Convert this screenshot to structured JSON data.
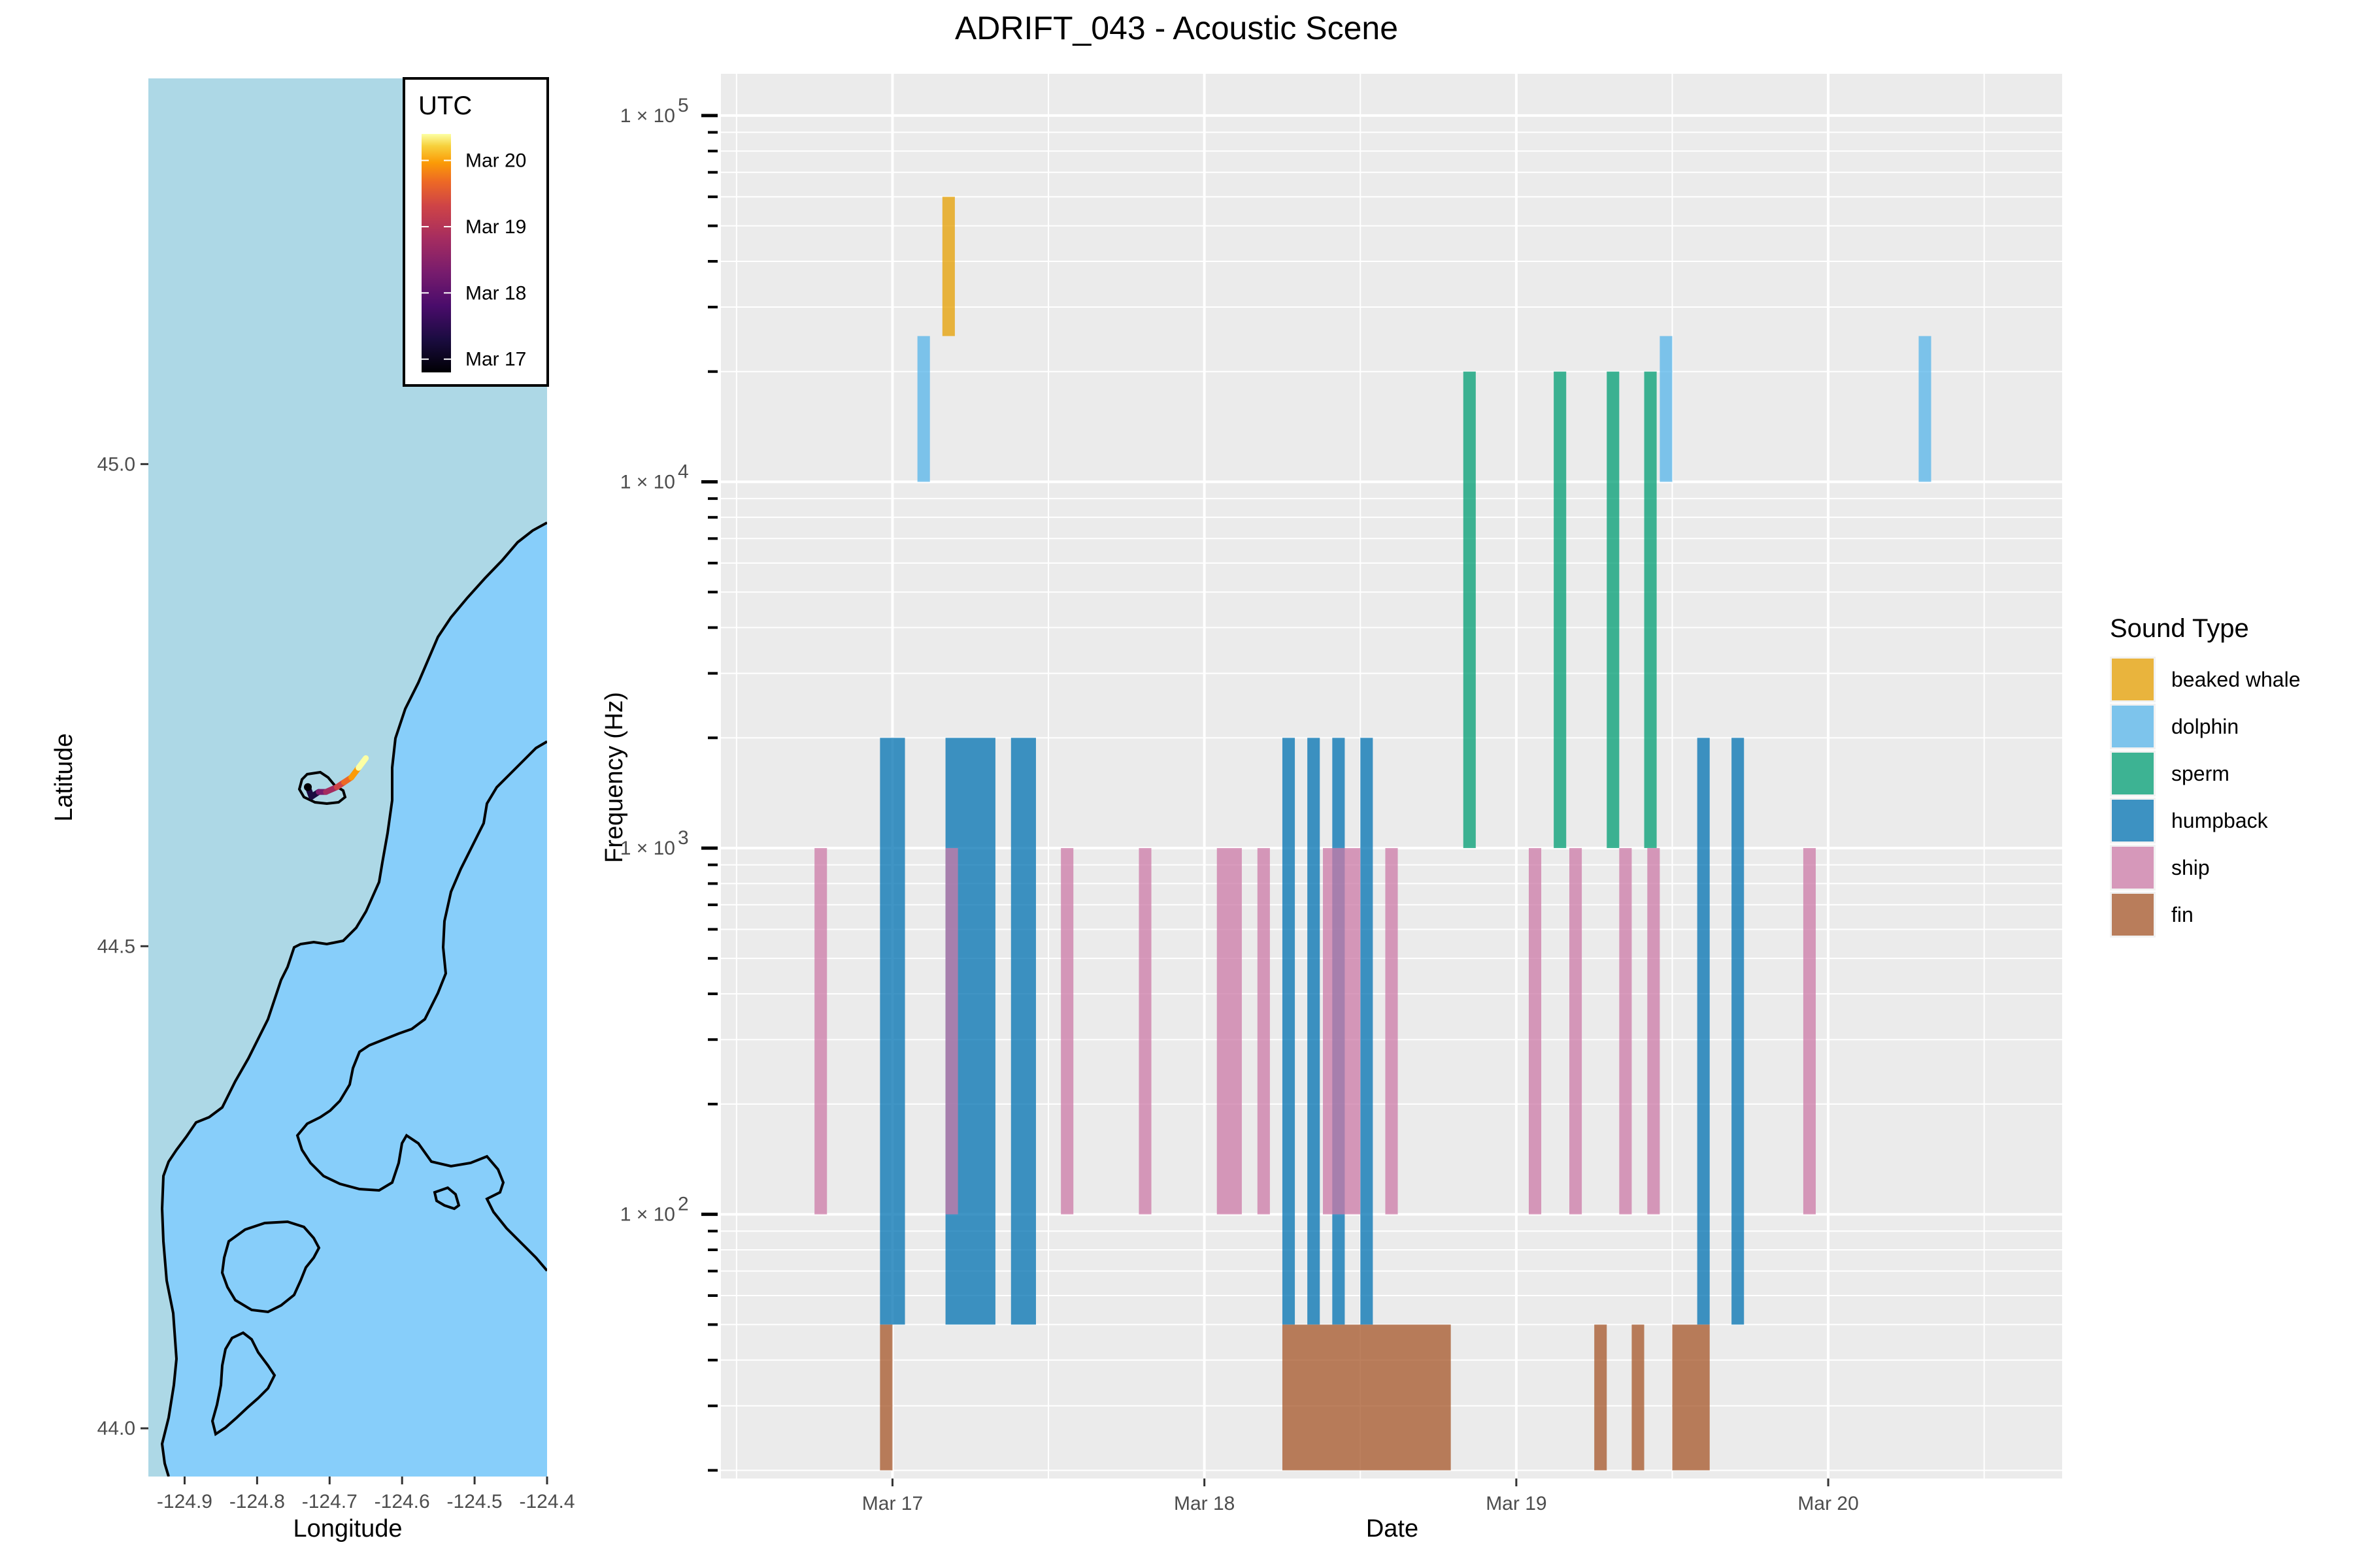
{
  "title": "ADRIFT_043 - Acoustic Scene",
  "chart_data": [
    {
      "type": "map",
      "xlabel": "Longitude",
      "ylabel": "Latitude",
      "xlim": [
        -124.95,
        -124.4
      ],
      "ylim": [
        43.95,
        45.4
      ],
      "x_ticks": [
        "-124.9",
        "-124.8",
        "-124.7",
        "-124.6",
        "-124.5",
        "-124.4"
      ],
      "x_tick_values": [
        -124.9,
        -124.8,
        -124.7,
        -124.6,
        -124.5,
        -124.4
      ],
      "y_ticks": [
        "44.0",
        "44.5",
        "45.0"
      ],
      "y_tick_values": [
        44.0,
        44.5,
        45.0
      ],
      "colors": {
        "deep_water": "#add8e6",
        "shelf_water": "#87cefa",
        "contour": "#000000"
      },
      "colorbar": {
        "title": "UTC",
        "labels": [
          "Mar 17",
          "Mar 18",
          "Mar 19",
          "Mar 20"
        ],
        "label_days": [
          17,
          18,
          19,
          20
        ],
        "range_days": [
          16.8,
          20.4
        ],
        "colormap": "inferno"
      },
      "track": [
        {
          "day": 16.9,
          "lon": -124.73,
          "lat": 44.665
        },
        {
          "day": 17.2,
          "lon": -124.725,
          "lat": 44.655
        },
        {
          "day": 17.6,
          "lon": -124.715,
          "lat": 44.66
        },
        {
          "day": 18.0,
          "lon": -124.705,
          "lat": 44.66
        },
        {
          "day": 18.5,
          "lon": -124.69,
          "lat": 44.665
        },
        {
          "day": 19.0,
          "lon": -124.68,
          "lat": 44.67
        },
        {
          "day": 19.5,
          "lon": -124.67,
          "lat": 44.675
        },
        {
          "day": 20.0,
          "lon": -124.66,
          "lat": 44.685
        },
        {
          "day": 20.4,
          "lon": -124.65,
          "lat": 44.695
        }
      ]
    },
    {
      "type": "bar",
      "xlabel": "Date",
      "ylabel": "Frequency (Hz)",
      "yscale": "log10",
      "ylim": [
        19,
        130000
      ],
      "xlim_days": [
        16.45,
        20.75
      ],
      "x_ticks": [
        "Mar 17",
        "Mar 18",
        "Mar 19",
        "Mar 20"
      ],
      "x_tick_days": [
        17,
        18,
        19,
        20
      ],
      "y_ticks": [
        "1 × 10",
        "1 × 10",
        "1 × 10",
        "1 × 10"
      ],
      "y_tick_exponents": [
        "2",
        "3",
        "4",
        "5"
      ],
      "y_tick_values": [
        100,
        1000,
        10000,
        100000
      ],
      "legend": {
        "title": "Sound Type",
        "position": "right",
        "entries": [
          "beaked whale",
          "dolphin",
          "sperm",
          "humpback",
          "ship",
          "fin"
        ]
      },
      "series": [
        {
          "name": "beaked whale",
          "color": "#e69f00",
          "low": 25000,
          "high": 60000,
          "days": [
            [
              17.16,
              17.2
            ]
          ]
        },
        {
          "name": "dolphin",
          "color": "#56b4e9",
          "low": 10000,
          "high": 25000,
          "days": [
            [
              17.08,
              17.12
            ],
            [
              19.46,
              19.5
            ],
            [
              20.29,
              20.33
            ]
          ]
        },
        {
          "name": "sperm",
          "color": "#009e73",
          "low": 1000,
          "high": 20000,
          "days": [
            [
              18.83,
              18.87
            ],
            [
              19.12,
              19.16
            ],
            [
              19.29,
              19.33
            ],
            [
              19.41,
              19.45
            ]
          ]
        },
        {
          "name": "humpback",
          "color": "#0072b2",
          "low": 50,
          "high": 2000,
          "days": [
            [
              16.96,
              17.04
            ],
            [
              17.17,
              17.33
            ],
            [
              17.38,
              17.46
            ],
            [
              18.25,
              18.29
            ],
            [
              18.33,
              18.37
            ],
            [
              18.41,
              18.45
            ],
            [
              18.5,
              18.54
            ],
            [
              19.58,
              19.62
            ],
            [
              19.69,
              19.73
            ]
          ]
        },
        {
          "name": "ship",
          "color": "#cc79a7",
          "low": 100,
          "high": 1000,
          "days": [
            [
              16.75,
              16.79
            ],
            [
              17.17,
              17.21
            ],
            [
              17.54,
              17.58
            ],
            [
              17.79,
              17.83
            ],
            [
              18.04,
              18.12
            ],
            [
              18.17,
              18.21
            ],
            [
              18.38,
              18.5
            ],
            [
              18.58,
              18.62
            ],
            [
              19.04,
              19.08
            ],
            [
              19.17,
              19.21
            ],
            [
              19.33,
              19.37
            ],
            [
              19.42,
              19.46
            ],
            [
              19.92,
              19.96
            ]
          ]
        },
        {
          "name": "fin",
          "color": "#a65628",
          "low": 20,
          "high": 50,
          "days": [
            [
              16.96,
              17.0
            ],
            [
              18.25,
              18.79
            ],
            [
              19.25,
              19.29
            ],
            [
              19.37,
              19.41
            ],
            [
              19.5,
              19.62
            ]
          ]
        }
      ]
    }
  ]
}
